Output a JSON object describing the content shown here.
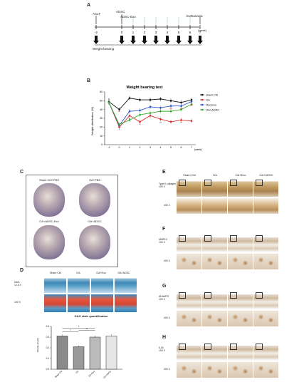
{
  "panels": {
    "A": "A",
    "B": "B",
    "C": "C",
    "D": "D",
    "E": "E",
    "F": "F",
    "G": "G",
    "H": "H"
  },
  "timeline": {
    "aclt": "ACLT",
    "adsc": "ADSC",
    "adsc_exo": "ADSC-Exo",
    "euthanasia": "Euthanasia",
    "ticks": [
      "-2",
      "0",
      "1",
      "2",
      "3",
      "4",
      "5",
      "6",
      "7"
    ],
    "unit": "(week)",
    "weight_bearing": "Weight bearing"
  },
  "chart_data": {
    "type": "line",
    "title": "Weight bearing test",
    "xlabel": "(week)",
    "ylabel": "Weight distribution (%)",
    "categories": [
      "-2",
      "0",
      "1",
      "2",
      "3",
      "4",
      "5",
      "6",
      "7"
    ],
    "ylim": [
      0,
      60
    ],
    "yticks": [
      "0",
      "10",
      "20",
      "30",
      "40",
      "50",
      "60"
    ],
    "legend_position": "right",
    "series": [
      {
        "name": "sham Ctrl",
        "color": "#111111",
        "values": [
          49,
          40,
          53,
          51,
          51,
          52,
          50,
          48,
          51
        ]
      },
      {
        "name": "OA",
        "color": "#d93030",
        "values": [
          48,
          20,
          33,
          26,
          33,
          29,
          26,
          28,
          27
        ]
      },
      {
        "name": "OA+Exo",
        "color": "#2e55c8",
        "values": [
          48,
          22,
          38,
          39,
          43,
          42,
          44,
          44,
          49
        ]
      },
      {
        "name": "OA+ADSC",
        "color": "#3aaa35",
        "values": [
          48,
          23,
          28,
          34,
          36,
          38,
          38,
          40,
          46
        ]
      }
    ],
    "annotations": [
      "#",
      "**",
      "*",
      "**",
      "**",
      "*",
      "**",
      "**",
      "##",
      "**",
      "##",
      "##"
    ]
  },
  "panelC": {
    "labels": [
      "Sham Ctrl+PBS",
      "OA+PBS",
      "OA+ADSC-Exo",
      "OA+ADSC"
    ]
  },
  "panelD": {
    "cols": [
      "Sham Ctrl",
      "OA",
      "OA+Exo",
      "OA+ADSC"
    ],
    "rowlabel1": "GAG",
    "rowlabel1b": "12.5 X",
    "rowlabel2": "100 X",
    "quant_title": "GAG stain quantification",
    "quant_ylabel": "Density (mean)",
    "sig": [
      "*",
      "*",
      "**"
    ],
    "bar_data": {
      "type": "bar",
      "categories": [
        "Sham Ctrl",
        "OA",
        "OA+Exo",
        "OA+ADSC"
      ],
      "values": [
        0.31,
        0.21,
        0.3,
        0.31
      ],
      "ylim": [
        0,
        0.4
      ],
      "yticks": [
        "0.0",
        "0.1",
        "0.2",
        "0.3",
        "0.4"
      ]
    }
  },
  "panelE": {
    "cols": [
      "Sham Ctrl",
      "OA",
      "OA+Exo",
      "OA+ADSC"
    ],
    "row1": "Type II collagen",
    "row1b": "100 X",
    "row2": "400 X"
  },
  "panelF": {
    "row1": "MMP13",
    "row1b": "100 X",
    "row2": "400 X"
  },
  "panelG": {
    "row1": "ADAMTS",
    "row1b": "100 X",
    "row2": "400 X"
  },
  "panelH": {
    "row1": "IL1b",
    "row1b": "100 X",
    "row2": "400 X"
  }
}
